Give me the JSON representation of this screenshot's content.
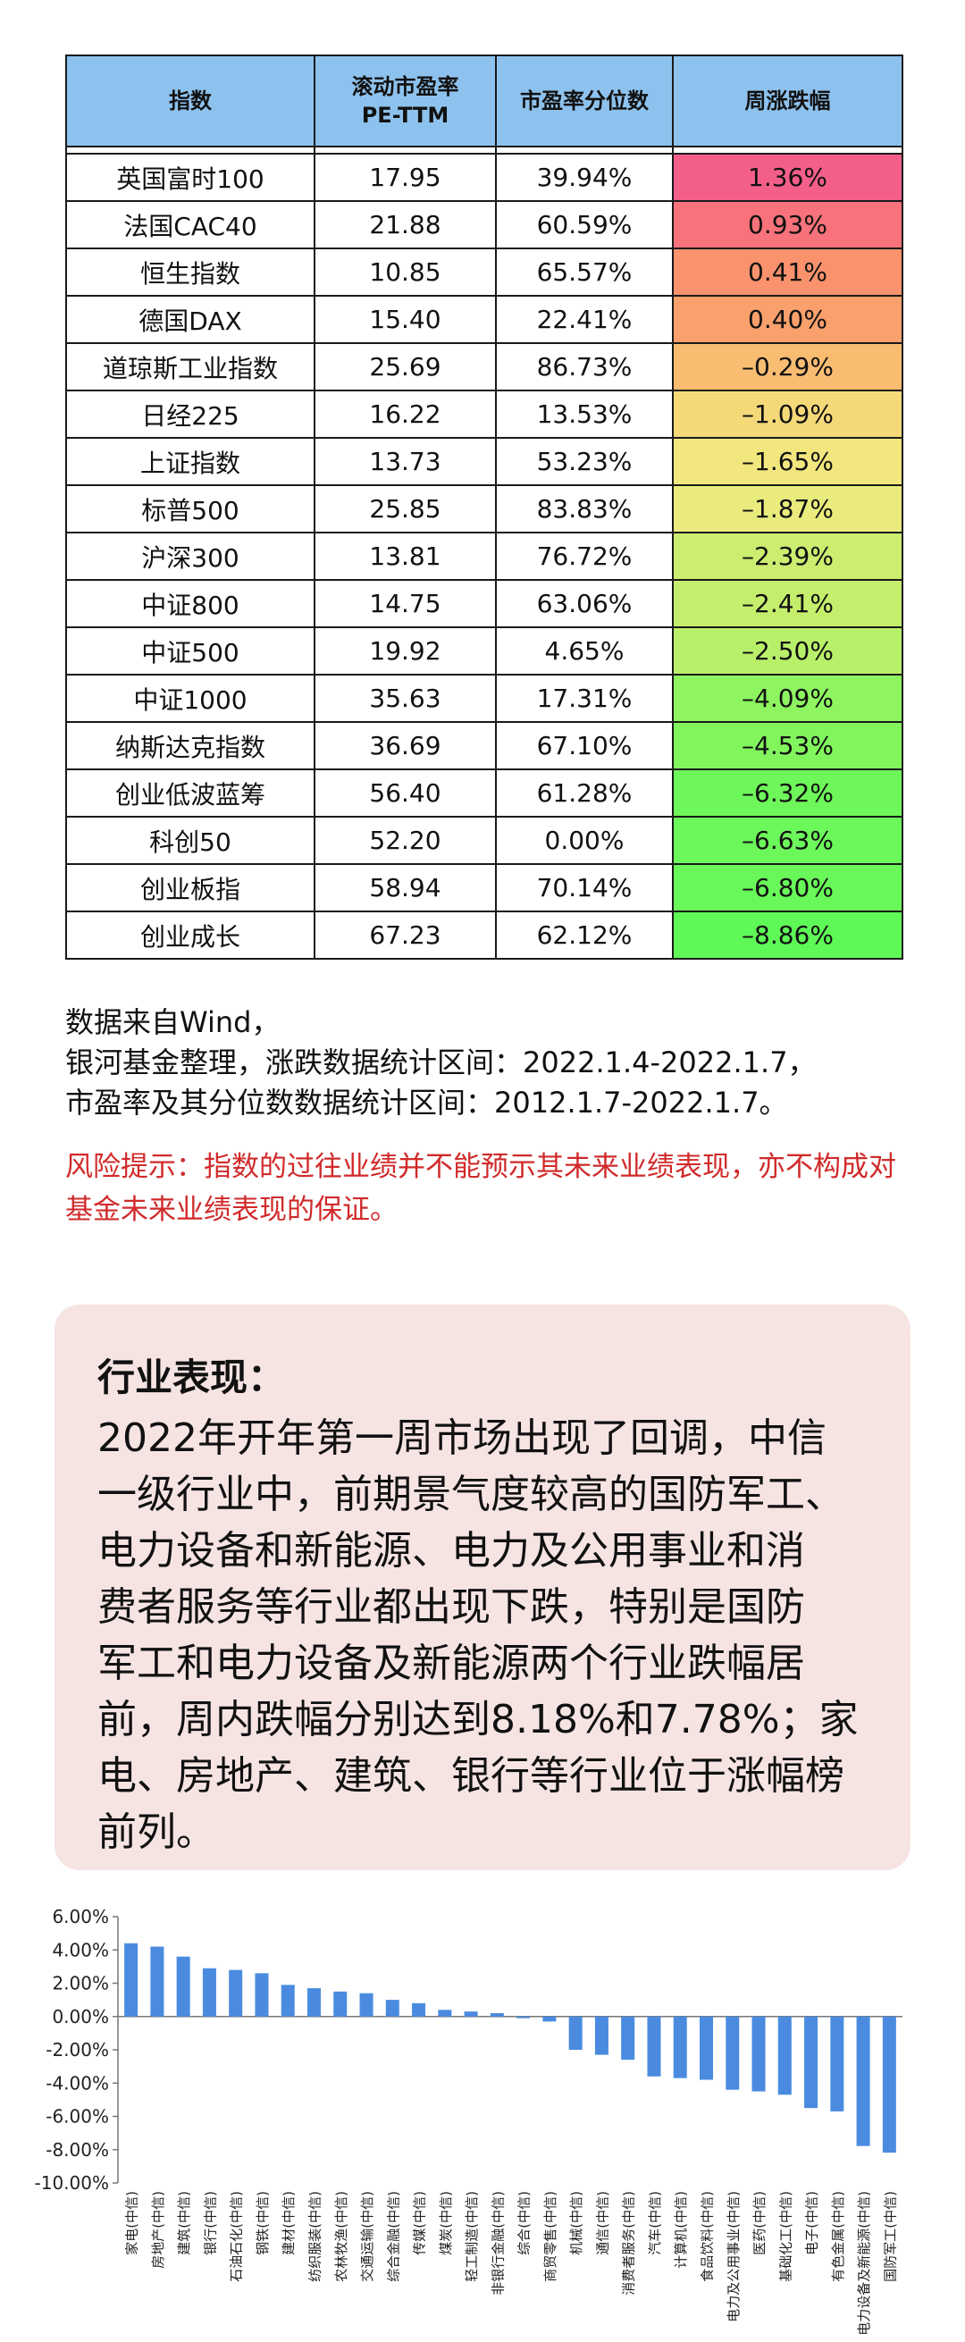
{
  "table": {
    "headers": {
      "index": "指数",
      "pe_line1": "滚动市盈率",
      "pe_line2": "PE-TTM",
      "percentile": "市盈率分位数",
      "weekly": "周涨跌幅"
    },
    "rows": [
      {
        "name": "英国富时100",
        "pe": "17.95",
        "pct": "39.94%",
        "chg": "1.36%",
        "color": "#f45f8a"
      },
      {
        "name": "法国CAC40",
        "pe": "21.88",
        "pct": "60.59%",
        "chg": "0.93%",
        "color": "#f7727a"
      },
      {
        "name": "恒生指数",
        "pe": "10.85",
        "pct": "65.57%",
        "chg": "0.41%",
        "color": "#f9926d"
      },
      {
        "name": "德国DAX",
        "pe": "15.40",
        "pct": "22.41%",
        "chg": "0.40%",
        "color": "#f9a06c"
      },
      {
        "name": "道琼斯工业指数",
        "pe": "25.69",
        "pct": "86.73%",
        "chg": "–0.29%",
        "color": "#f9bd72"
      },
      {
        "name": "日经225",
        "pe": "16.22",
        "pct": "13.53%",
        "chg": "–1.09%",
        "color": "#f5d979"
      },
      {
        "name": "上证指数",
        "pe": "13.73",
        "pct": "53.23%",
        "chg": "–1.65%",
        "color": "#f2e67e"
      },
      {
        "name": "标普500",
        "pe": "25.85",
        "pct": "83.83%",
        "chg": "–1.87%",
        "color": "#e9ec7c"
      },
      {
        "name": "沪深300",
        "pe": "13.81",
        "pct": "76.72%",
        "chg": "–2.39%",
        "color": "#cbed70"
      },
      {
        "name": "中证800",
        "pe": "14.75",
        "pct": "63.06%",
        "chg": "–2.41%",
        "color": "#c5ee6d"
      },
      {
        "name": "中证500",
        "pe": "19.92",
        "pct": "4.65%",
        "chg": "–2.50%",
        "color": "#b9f06a"
      },
      {
        "name": "中证1000",
        "pe": "35.63",
        "pct": "17.31%",
        "chg": "–4.09%",
        "color": "#8ef560"
      },
      {
        "name": "纳斯达克指数",
        "pe": "36.69",
        "pct": "67.10%",
        "chg": "–4.53%",
        "color": "#82f55d"
      },
      {
        "name": "创业低波蓝筹",
        "pe": "56.40",
        "pct": "61.28%",
        "chg": "–6.32%",
        "color": "#6ef75a"
      },
      {
        "name": "科创50",
        "pe": "52.20",
        "pct": "0.00%",
        "chg": "–6.63%",
        "color": "#6cf75a"
      },
      {
        "name": "创业板指",
        "pe": "58.94",
        "pct": "70.14%",
        "chg": "–6.80%",
        "color": "#69f859"
      },
      {
        "name": "创业成长",
        "pe": "67.23",
        "pct": "62.12%",
        "chg": "–8.86%",
        "color": "#5ff957"
      }
    ]
  },
  "notes": {
    "line1": "数据来自Wind，",
    "line2": "银河基金整理，涨跌数据统计区间：2022.1.4-2022.1.7，",
    "line3": "市盈率及其分位数数据统计区间：2012.1.7-2022.1.7。",
    "risk": "风险提示：指数的过往业绩并不能预示其未来业绩表现，亦不构成对基金未来业绩表现的保证。"
  },
  "industry": {
    "title": "行业表现：",
    "lines": [
      "2022年开年第一周市场出现了回调，中信",
      "一级行业中，前期景气度较高的国防军工、",
      "电力设备和新能源、电力及公用事业和消",
      "费者服务等行业都出现下跌，特别是国防",
      "军工和电力设备及新能源两个行业跌幅居",
      "前，周内跌幅分别达到8.18%和7.78%；家",
      "电、房地产、建筑、银行等行业位于涨幅榜",
      "前列。"
    ]
  },
  "chart_data": {
    "type": "bar",
    "bar_color": "#4a8be0",
    "grid": false,
    "legend": "none",
    "ylim": [
      -10,
      6
    ],
    "yticks": [
      "6.00%",
      "4.00%",
      "2.00%",
      "0.00%",
      "-2.00%",
      "-4.00%",
      "-6.00%",
      "-8.00%",
      "-10.00%"
    ],
    "ytick_values": [
      6,
      4,
      2,
      0,
      -2,
      -4,
      -6,
      -8,
      -10
    ],
    "categories": [
      "家电(中信)",
      "房地产(中信)",
      "建筑(中信)",
      "银行(中信)",
      "石油石化(中信)",
      "钢铁(中信)",
      "建材(中信)",
      "纺织服装(中信)",
      "农林牧渔(中信)",
      "交通运输(中信)",
      "综合金融(中信)",
      "传媒(中信)",
      "煤炭(中信)",
      "轻工制造(中信)",
      "非银行金融(中信)",
      "综合(中信)",
      "商贸零售(中信)",
      "机械(中信)",
      "通信(中信)",
      "消费者服务(中信)",
      "汽车(中信)",
      "计算机(中信)",
      "食品饮料(中信)",
      "电力及公用事业(中信)",
      "医药(中信)",
      "基础化工(中信)",
      "电子(中信)",
      "有色金属(中信)",
      "电力设备及新能源(中信)",
      "国防军工(中信)"
    ],
    "values": [
      4.4,
      4.2,
      3.6,
      2.9,
      2.8,
      2.6,
      1.9,
      1.7,
      1.5,
      1.4,
      1.0,
      0.8,
      0.4,
      0.3,
      0.2,
      -0.1,
      -0.3,
      -2.0,
      -2.3,
      -2.6,
      -3.6,
      -3.7,
      -3.8,
      -4.4,
      -4.5,
      -4.7,
      -5.5,
      -5.7,
      -7.78,
      -8.18
    ]
  }
}
